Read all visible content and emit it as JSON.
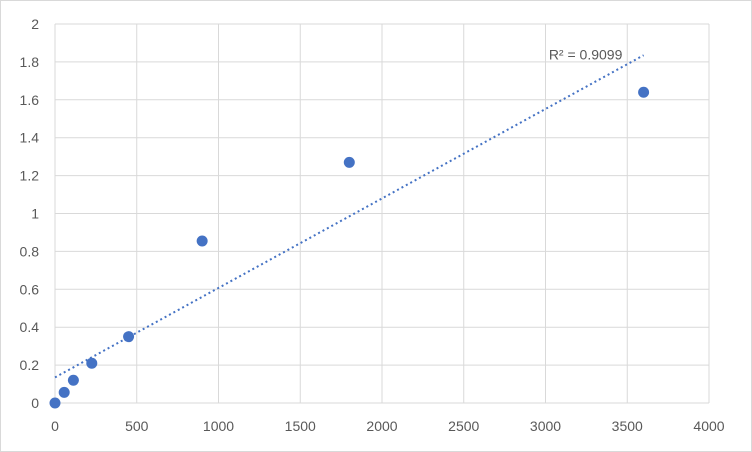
{
  "chart_data": {
    "type": "scatter",
    "title": "",
    "xlabel": "",
    "ylabel": "",
    "xlim": [
      0,
      4000
    ],
    "ylim": [
      0,
      2
    ],
    "x_ticks": [
      0,
      500,
      1000,
      1500,
      2000,
      2500,
      3000,
      3500,
      4000
    ],
    "y_ticks": [
      0,
      0.2,
      0.4,
      0.6,
      0.8,
      1,
      1.2,
      1.4,
      1.6,
      1.8,
      2
    ],
    "grid": true,
    "legend": "none",
    "series": [
      {
        "x": [
          0,
          56.25,
          112.5,
          225,
          450,
          900,
          1800,
          3600
        ],
        "y": [
          0,
          0.056,
          0.12,
          0.21,
          0.35,
          0.855,
          1.27,
          1.64
        ],
        "color": "#4472c4"
      }
    ],
    "trendline": {
      "type": "linear",
      "x_range": [
        0,
        3600
      ],
      "y_range": [
        0.135,
        1.835
      ],
      "color": "#4472c4",
      "style": "dotted",
      "label": "R² = 0.9099"
    }
  }
}
